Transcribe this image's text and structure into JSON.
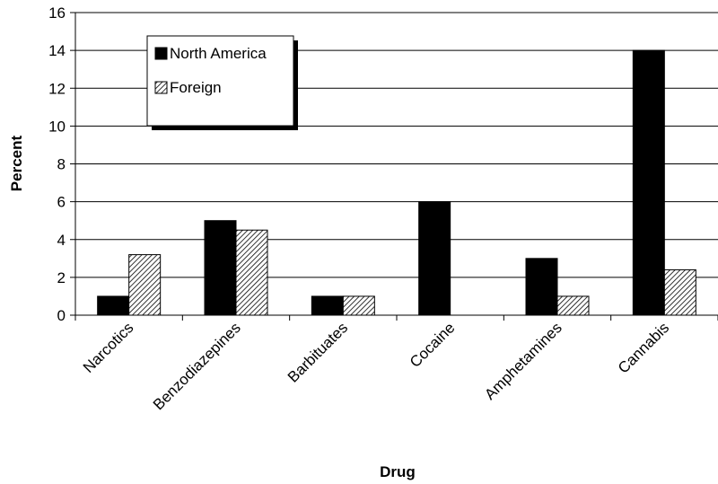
{
  "chart_data": {
    "type": "bar",
    "categories": [
      "Narcotics",
      "Benzodiazepines",
      "Barbituates",
      "Cocaine",
      "Amphetamines",
      "Cannabis"
    ],
    "series": [
      {
        "name": "North America",
        "values": [
          1,
          5,
          1,
          6,
          3,
          14
        ],
        "fill": "#000000",
        "pattern": "solid"
      },
      {
        "name": "Foreign",
        "values": [
          3.2,
          4.5,
          1,
          0,
          1,
          2.4
        ],
        "fill": "#ffffff",
        "pattern": "diagonal-hatch"
      }
    ],
    "xlabel": "Drug",
    "ylabel": "Percent",
    "ylim": [
      0,
      16
    ],
    "yticks": [
      0,
      2,
      4,
      6,
      8,
      10,
      12,
      14,
      16
    ],
    "grid": true,
    "legend": "top-left"
  }
}
